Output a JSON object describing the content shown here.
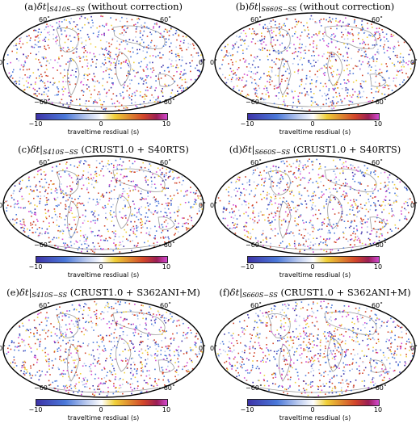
{
  "colorbar": {
    "label": "traveltime resdiual (s)",
    "ticks": [
      "−10",
      "0",
      "10"
    ],
    "range": [
      -10,
      10
    ]
  },
  "axis_ticks": {
    "lat_top": "60˚",
    "lat_equator": "0˚",
    "lat_bottom": "−60˚"
  },
  "panels": [
    {
      "id": "a",
      "tag": "(a)",
      "delta": "δt|",
      "sub": "S410S−SS",
      "rest": " (without correction)",
      "seed": 11
    },
    {
      "id": "b",
      "tag": "(b)",
      "delta": "δt|",
      "sub": "S660S−SS",
      "rest": " (without correction)",
      "seed": 23
    },
    {
      "id": "c",
      "tag": "(c)",
      "delta": "δt|",
      "sub": "S410S−SS",
      "rest": " (CRUST1.0 + S40RTS)",
      "seed": 37
    },
    {
      "id": "d",
      "tag": "(d)",
      "delta": "δt|",
      "sub": "S660S−SS",
      "rest": " (CRUST1.0 + S40RTS)",
      "seed": 41
    },
    {
      "id": "e",
      "tag": "(e)",
      "delta": "δt|",
      "sub": "S410S−SS",
      "rest": " (CRUST1.0 + S362ANI+M)",
      "seed": 53
    },
    {
      "id": "f",
      "tag": "(f)",
      "delta": "δt|",
      "sub": "S660S−SS",
      "rest": " (CRUST1.0 + S362ANI+M)",
      "seed": 67
    }
  ],
  "colors": {
    "neg_strong": "#3d33a8",
    "neg": "#4a78d9",
    "neg_weak": "#b8c8ee",
    "pos_weak": "#f0d038",
    "pos": "#d2452a",
    "pos_strong": "#d248d0",
    "coast": "#9a9a9a"
  }
}
